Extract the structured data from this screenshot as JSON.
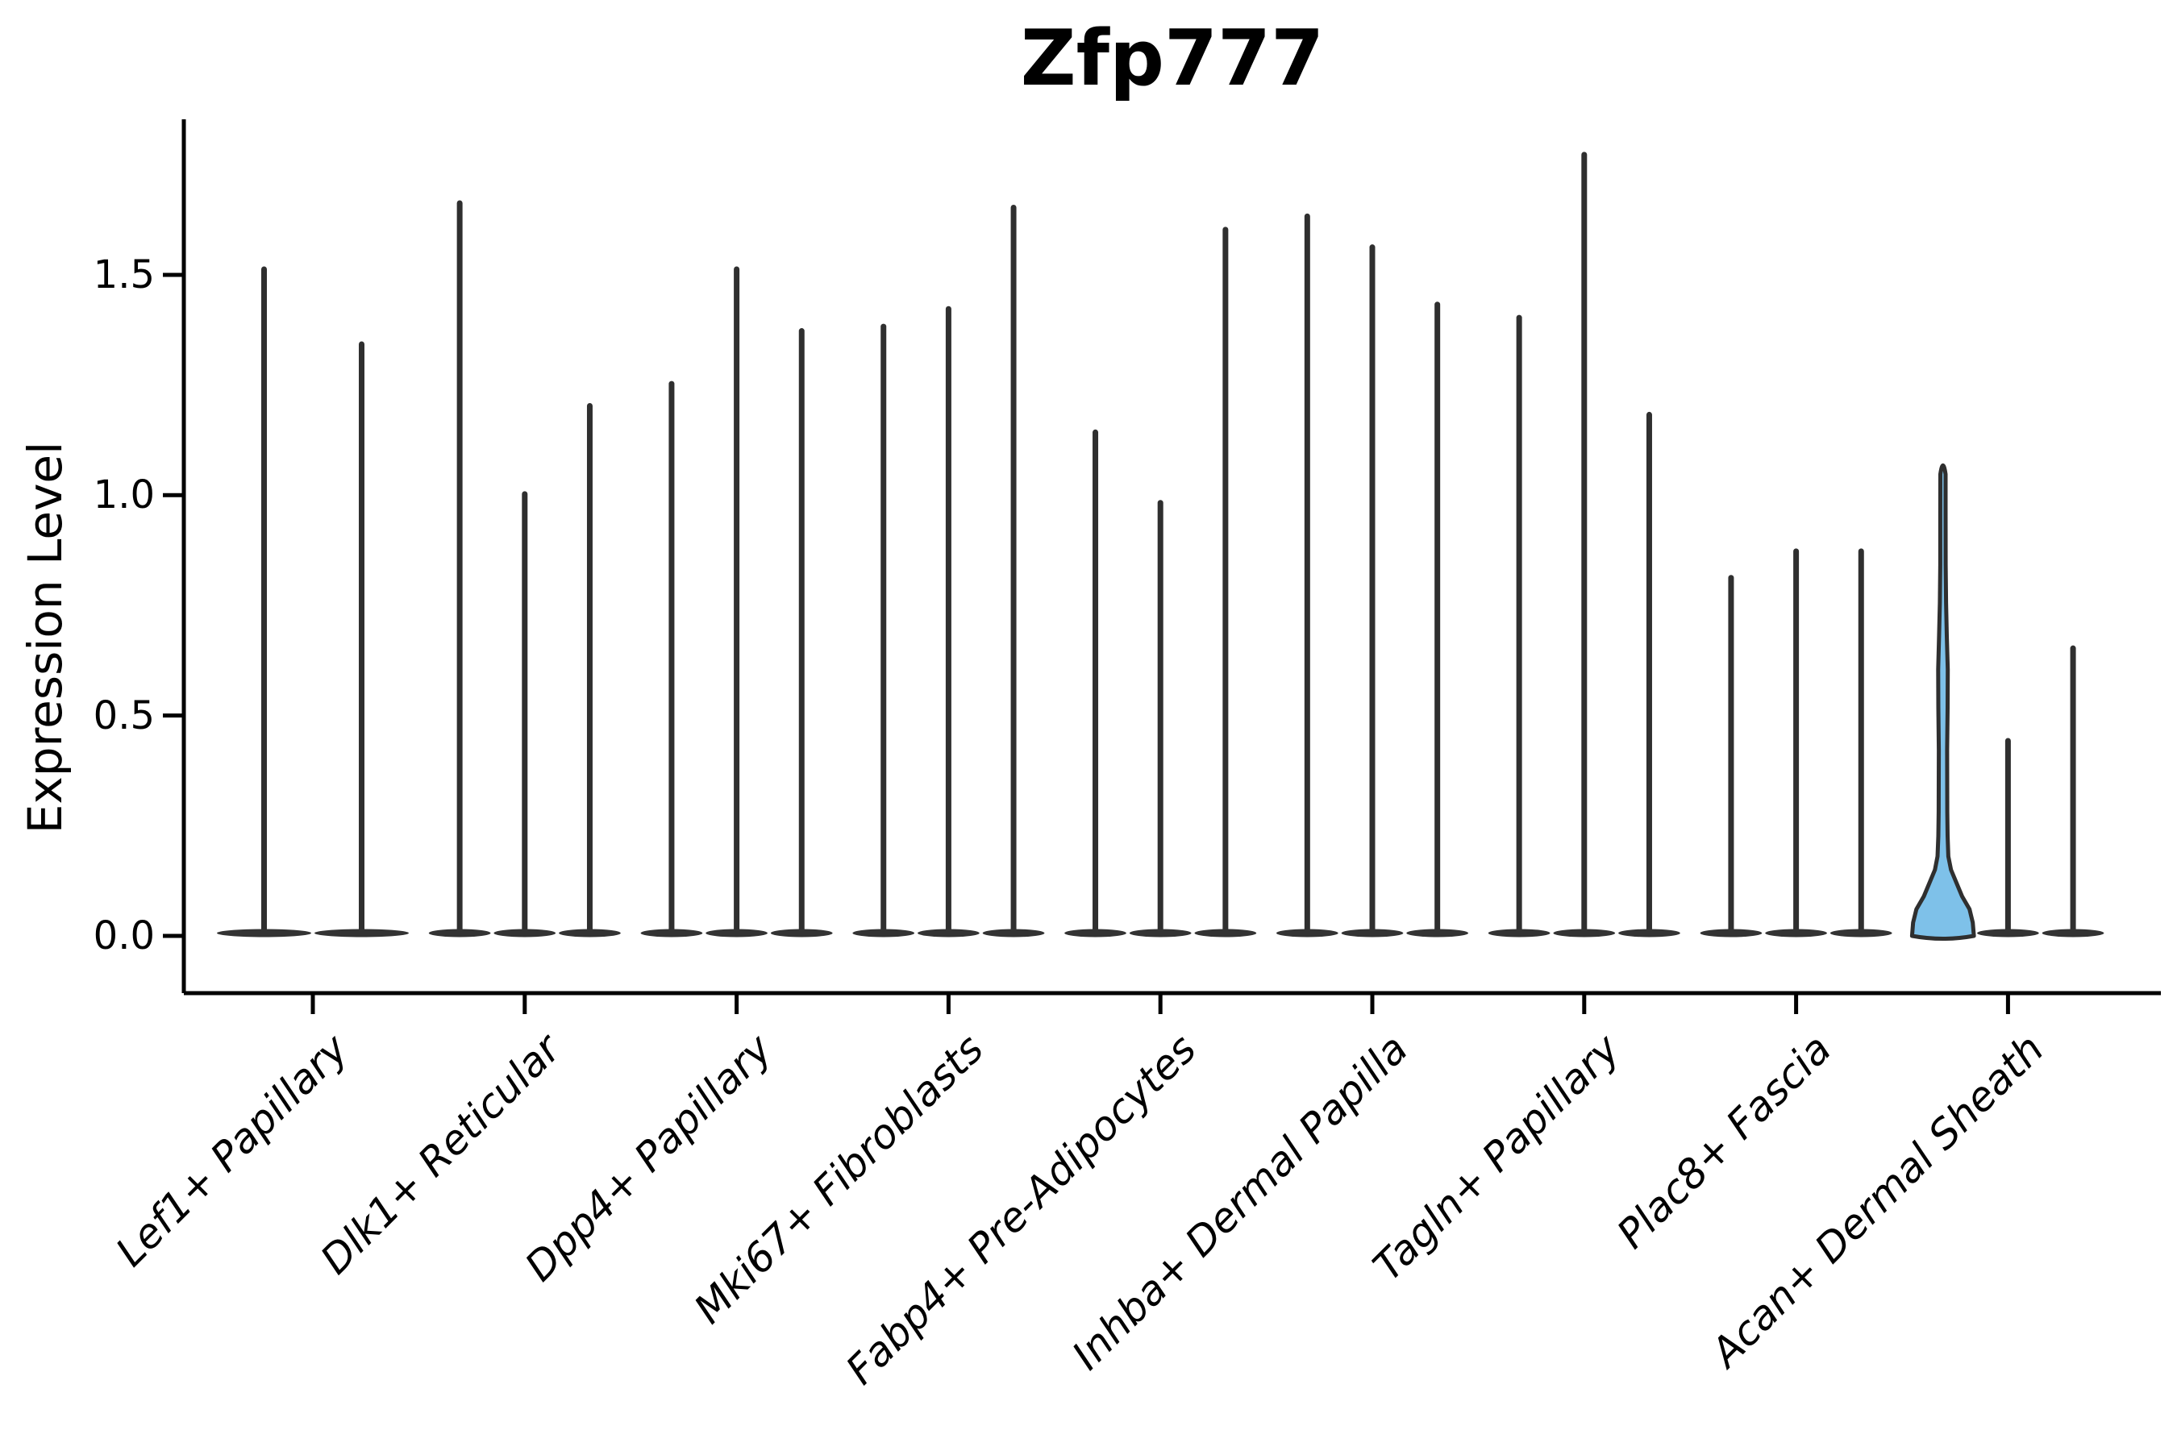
{
  "figure": {
    "title": "Zfp777",
    "y_axis": {
      "label": "Expression Level",
      "tick_labels": [
        "0.0",
        "0.5",
        "1.0",
        "1.5"
      ],
      "tick_values": [
        0.0,
        0.5,
        1.0,
        1.5
      ]
    },
    "colors": {
      "background": "#ffffff",
      "axis": "#000000",
      "text": "#000000",
      "violin_stroke": "#2f2f2f",
      "violin_base_fill": "#333333",
      "highlight_fill": "#7EC1E9"
    }
  },
  "chart_data": {
    "type": "violin",
    "title": "Zfp777",
    "xlabel": "",
    "ylabel": "Expression Level",
    "ylim": [
      -0.13,
      1.85
    ],
    "yticks": [
      0.0,
      0.5,
      1.0,
      1.5
    ],
    "grid": false,
    "legend": null,
    "categories": [
      "Lef1+ Papillary",
      "Dlk1+ Reticular",
      "Dpp4+ Papillary",
      "Mki67+ Fibroblasts",
      "Fabp4+ Pre-Adipocytes",
      "Inhba+ Dermal Papilla",
      "Tagln+ Papillary",
      "Plac8+ Fascia",
      "Acan+ Dermal Sheath"
    ],
    "groups": [
      {
        "category": "Lef1+ Papillary",
        "violins": [
          {
            "max_expression": 1.52
          },
          {
            "max_expression": 1.35
          }
        ]
      },
      {
        "category": "Dlk1+ Reticular",
        "violins": [
          {
            "max_expression": 1.67
          },
          {
            "max_expression": 1.01
          },
          {
            "max_expression": 1.21
          }
        ]
      },
      {
        "category": "Dpp4+ Papillary",
        "violins": [
          {
            "max_expression": 1.26
          },
          {
            "max_expression": 1.52
          },
          {
            "max_expression": 1.38
          }
        ]
      },
      {
        "category": "Mki67+ Fibroblasts",
        "violins": [
          {
            "max_expression": 1.39
          },
          {
            "max_expression": 1.43
          },
          {
            "max_expression": 1.66
          }
        ]
      },
      {
        "category": "Fabp4+ Pre-Adipocytes",
        "violins": [
          {
            "max_expression": 1.15
          },
          {
            "max_expression": 0.99
          },
          {
            "max_expression": 1.61
          }
        ]
      },
      {
        "category": "Inhba+ Dermal Papilla",
        "violins": [
          {
            "max_expression": 1.64
          },
          {
            "max_expression": 1.57
          },
          {
            "max_expression": 1.44
          }
        ]
      },
      {
        "category": "Tagln+ Papillary",
        "violins": [
          {
            "max_expression": 1.41
          },
          {
            "max_expression": 1.78
          },
          {
            "max_expression": 1.19
          }
        ]
      },
      {
        "category": "Plac8+ Fascia",
        "violins": [
          {
            "max_expression": 0.82
          },
          {
            "max_expression": 0.88
          },
          {
            "max_expression": 0.88
          }
        ]
      },
      {
        "category": "Acan+ Dermal Sheath",
        "violins": [
          {
            "max_expression": 1.08,
            "highlighted": true,
            "fill": "#7EC1E9",
            "shape": "wide"
          },
          {
            "max_expression": 0.45
          },
          {
            "max_expression": 0.66
          }
        ]
      }
    ]
  }
}
